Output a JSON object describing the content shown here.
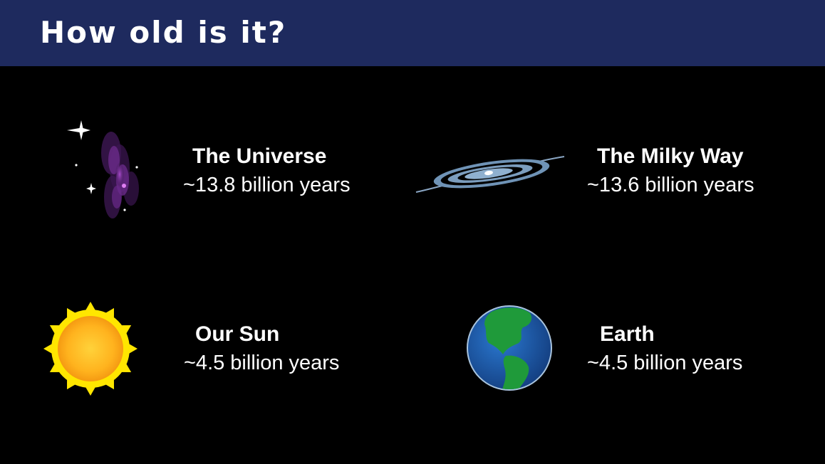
{
  "header": {
    "title": "How old is it?"
  },
  "items": [
    {
      "name": "The Universe",
      "age": "~13.8 billion years",
      "icon": "universe-nebula-icon"
    },
    {
      "name": "The Milky Way",
      "age": "~13.6 billion years",
      "icon": "spiral-galaxy-icon"
    },
    {
      "name": "Our Sun",
      "age": "~4.5 billion years",
      "icon": "sun-icon"
    },
    {
      "name": "Earth",
      "age": "~4.5 billion years",
      "icon": "earth-globe-icon"
    }
  ],
  "colors": {
    "header_bg": "#1e2a5e",
    "background": "#000000",
    "text": "#ffffff"
  }
}
